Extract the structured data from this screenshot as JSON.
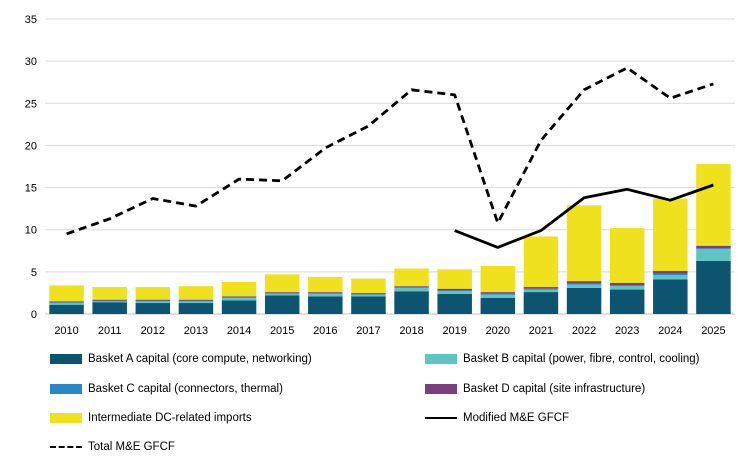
{
  "chart_data": {
    "type": "bar",
    "x": [
      "2010",
      "2011",
      "2012",
      "2013",
      "2014",
      "2015",
      "2016",
      "2017",
      "2018",
      "2019",
      "2020",
      "2021",
      "2022",
      "2023",
      "2024",
      "2025"
    ],
    "ylim": [
      0,
      35
    ],
    "yticks": [
      0,
      5,
      10,
      15,
      20,
      25,
      30,
      35
    ],
    "grid": "horizontal",
    "legend_position": "bottom",
    "stacked_series": [
      {
        "name": "Basket A capital (core compute, networking)",
        "color": "#0d5470",
        "values": [
          1.1,
          1.4,
          1.3,
          1.3,
          1.6,
          2.2,
          2.1,
          2.1,
          2.7,
          2.4,
          1.9,
          2.6,
          3.1,
          2.9,
          4.1,
          6.3
        ]
      },
      {
        "name": "Basket B capital (power, fibre, control, cooling)",
        "color": "#5ec4c4",
        "values": [
          0.2,
          0.1,
          0.2,
          0.2,
          0.3,
          0.2,
          0.3,
          0.2,
          0.4,
          0.3,
          0.4,
          0.3,
          0.4,
          0.4,
          0.5,
          1.4
        ]
      },
      {
        "name": "Basket C capital (connectors, thermal)",
        "color": "#2a86c4",
        "values": [
          0.1,
          0.1,
          0.1,
          0.1,
          0.1,
          0.1,
          0.1,
          0.1,
          0.1,
          0.1,
          0.1,
          0.1,
          0.1,
          0.1,
          0.2,
          0.1
        ]
      },
      {
        "name": "Basket D capital (site infrastructure)",
        "color": "#7b3f7f",
        "values": [
          0.1,
          0.1,
          0.1,
          0.1,
          0.1,
          0.1,
          0.1,
          0.1,
          0.1,
          0.2,
          0.2,
          0.2,
          0.3,
          0.3,
          0.3,
          0.3
        ]
      },
      {
        "name": "Intermediate DC-related imports",
        "color": "#f0e11f",
        "values": [
          1.9,
          1.5,
          1.5,
          1.6,
          1.7,
          2.1,
          1.8,
          1.7,
          2.1,
          2.3,
          3.1,
          6.0,
          9.0,
          6.5,
          8.6,
          9.7
        ]
      }
    ],
    "line_series": [
      {
        "name": "Modified M&E GFCF",
        "style": "solid",
        "color": "#000000",
        "values": [
          null,
          null,
          null,
          null,
          null,
          null,
          null,
          null,
          null,
          9.9,
          7.9,
          9.9,
          13.8,
          14.8,
          13.5,
          15.3
        ]
      },
      {
        "name": "Total M&E GFCF",
        "style": "dashed",
        "color": "#000000",
        "values": [
          9.5,
          11.3,
          13.7,
          12.8,
          16.0,
          15.8,
          19.7,
          22.3,
          26.6,
          26.0,
          10.8,
          20.6,
          26.6,
          29.2,
          25.6,
          27.3
        ]
      }
    ]
  },
  "legend": {
    "items": [
      {
        "label": "Basket A capital (core compute, networking)",
        "kind": "swatch",
        "color": "#0d5470"
      },
      {
        "label": "Basket B capital (power, fibre, control, cooling)",
        "kind": "swatch",
        "color": "#5ec4c4"
      },
      {
        "label": "Basket C capital (connectors, thermal)",
        "kind": "swatch",
        "color": "#2a86c4"
      },
      {
        "label": "Basket D capital (site infrastructure)",
        "kind": "swatch",
        "color": "#7b3f7f"
      },
      {
        "label": "Intermediate DC-related imports",
        "kind": "swatch",
        "color": "#f0e11f"
      },
      {
        "label": "Modified M&E GFCF",
        "kind": "line"
      },
      {
        "label": "Total M&E GFCF",
        "kind": "dashed"
      }
    ]
  }
}
